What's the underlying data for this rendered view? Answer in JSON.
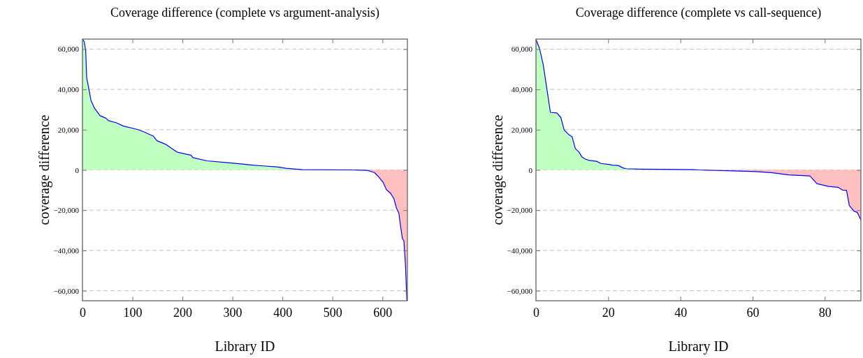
{
  "chart_data": [
    {
      "type": "area",
      "title": "Coverage difference (complete vs argument-analysis)",
      "xlabel": "Library ID",
      "ylabel": "coverage difference",
      "xlim": [
        0,
        650
      ],
      "xticks": [
        0,
        100,
        200,
        300,
        400,
        500,
        600
      ],
      "ylim": [
        -65000,
        65000
      ],
      "yticks": [
        {
          "value": -60000,
          "label": "−60,000"
        },
        {
          "value": -40000,
          "label": "−40,000"
        },
        {
          "value": -20000,
          "label": "−20,000"
        },
        0,
        {
          "value": 20000,
          "label": "20,000"
        },
        {
          "value": 40000,
          "label": "40,000"
        },
        {
          "value": 60000,
          "label": "60,000"
        }
      ],
      "grid": "y",
      "series": [
        {
          "type": "area",
          "color": "#bfffbf",
          "x": [
            0,
            3.7,
            6.5,
            8.4,
            12,
            17,
            24,
            35,
            47,
            52,
            68,
            82,
            110,
            124,
            142,
            149,
            166,
            179,
            189,
            217,
            221,
            249,
            291,
            324,
            337,
            361,
            389,
            407,
            440,
            533
          ],
          "values": [
            65000,
            63600,
            59200,
            45800,
            41300,
            34600,
            30700,
            27000,
            25700,
            24500,
            23400,
            21800,
            20100,
            18800,
            16700,
            14500,
            12800,
            10600,
            8900,
            7300,
            6100,
            4500,
            3600,
            2800,
            2500,
            2000,
            1500,
            800,
            100,
            0
          ]
        },
        {
          "type": "area",
          "color": "#ffbfbf",
          "x": [
            533,
            570,
            584,
            593,
            602,
            608,
            616,
            623,
            628,
            633,
            636,
            640,
            643,
            646,
            649
          ],
          "values": [
            0,
            -200,
            -1300,
            -3600,
            -6400,
            -9800,
            -11500,
            -14300,
            -18800,
            -21600,
            -27300,
            -34100,
            -35200,
            -46500,
            -65000
          ]
        },
        {
          "type": "line",
          "color": "#0000ff",
          "x": [
            0,
            3.7,
            6.5,
            8.4,
            12,
            17,
            24,
            35,
            47,
            52,
            68,
            82,
            110,
            124,
            142,
            149,
            166,
            179,
            189,
            217,
            221,
            249,
            291,
            324,
            337,
            361,
            389,
            407,
            440,
            533,
            570,
            584,
            593,
            602,
            608,
            616,
            623,
            628,
            633,
            636,
            640,
            643,
            646,
            649
          ],
          "values": [
            65000,
            63600,
            59200,
            45800,
            41300,
            34600,
            30700,
            27000,
            25700,
            24500,
            23400,
            21800,
            20100,
            18800,
            16700,
            14500,
            12800,
            10600,
            8900,
            7300,
            6100,
            4500,
            3600,
            2800,
            2500,
            2000,
            1500,
            800,
            100,
            0,
            -200,
            -1300,
            -3600,
            -6400,
            -9800,
            -11500,
            -14300,
            -18800,
            -21600,
            -27300,
            -34100,
            -35200,
            -46500,
            -65000
          ]
        }
      ]
    },
    {
      "type": "area",
      "title": "Coverage difference (complete vs call-sequence)",
      "xlabel": "Library ID",
      "ylabel": "coverage difference",
      "xlim": [
        0,
        90
      ],
      "xticks": [
        0,
        20,
        40,
        60,
        80
      ],
      "ylim": [
        -65000,
        65000
      ],
      "yticks": [
        {
          "value": -60000,
          "label": "−60,000"
        },
        {
          "value": -40000,
          "label": "−40,000"
        },
        {
          "value": -20000,
          "label": "−20,000"
        },
        0,
        {
          "value": 20000,
          "label": "20,000"
        },
        {
          "value": 40000,
          "label": "40,000"
        },
        {
          "value": 60000,
          "label": "60,000"
        }
      ],
      "grid": "y",
      "series": [
        {
          "type": "area",
          "color": "#bfffbf",
          "x": [
            0,
            1,
            2,
            4,
            5.8,
            6.9,
            7.8,
            9,
            10,
            10.9,
            11.9,
            12.8,
            13.8,
            14.8,
            16.8,
            18,
            20.2,
            21.2,
            22.8,
            24.1,
            25,
            29,
            35,
            43.7
          ],
          "values": [
            64800,
            60300,
            52400,
            28600,
            28300,
            26000,
            19900,
            17700,
            16500,
            10600,
            8900,
            6300,
            5300,
            4700,
            4300,
            3200,
            2700,
            2400,
            2200,
            1000,
            600,
            400,
            300,
            150
          ]
        },
        {
          "type": "area",
          "color": "#ffbfbf",
          "x": [
            45,
            54.6,
            61,
            65.6,
            70,
            75.9,
            77.8,
            81,
            83.6,
            84.9,
            86,
            86.8,
            88.1,
            89,
            90
          ],
          "values": [
            0,
            -500,
            -800,
            -1400,
            -2500,
            -3000,
            -6800,
            -8200,
            -8600,
            -10000,
            -10100,
            -17700,
            -20500,
            -21100,
            -24800
          ]
        },
        {
          "type": "line",
          "color": "#0000ff",
          "x": [
            0,
            1,
            2,
            4,
            5.8,
            6.9,
            7.8,
            9,
            10,
            10.9,
            11.9,
            12.8,
            13.8,
            14.8,
            16.8,
            18,
            20.2,
            21.2,
            22.8,
            24.1,
            25,
            29,
            35,
            43.7,
            45,
            54.6,
            61,
            65.6,
            70,
            75.9,
            77.8,
            81,
            83.6,
            84.9,
            86,
            86.8,
            88.1,
            89,
            90
          ],
          "values": [
            64800,
            60300,
            52400,
            28600,
            28300,
            26000,
            19900,
            17700,
            16500,
            10600,
            8900,
            6300,
            5300,
            4700,
            4300,
            3200,
            2700,
            2400,
            2200,
            1000,
            600,
            400,
            300,
            150,
            0,
            -500,
            -800,
            -1400,
            -2500,
            -3000,
            -6800,
            -8200,
            -8600,
            -10000,
            -10100,
            -17700,
            -20500,
            -21100,
            -24800
          ]
        }
      ]
    }
  ]
}
